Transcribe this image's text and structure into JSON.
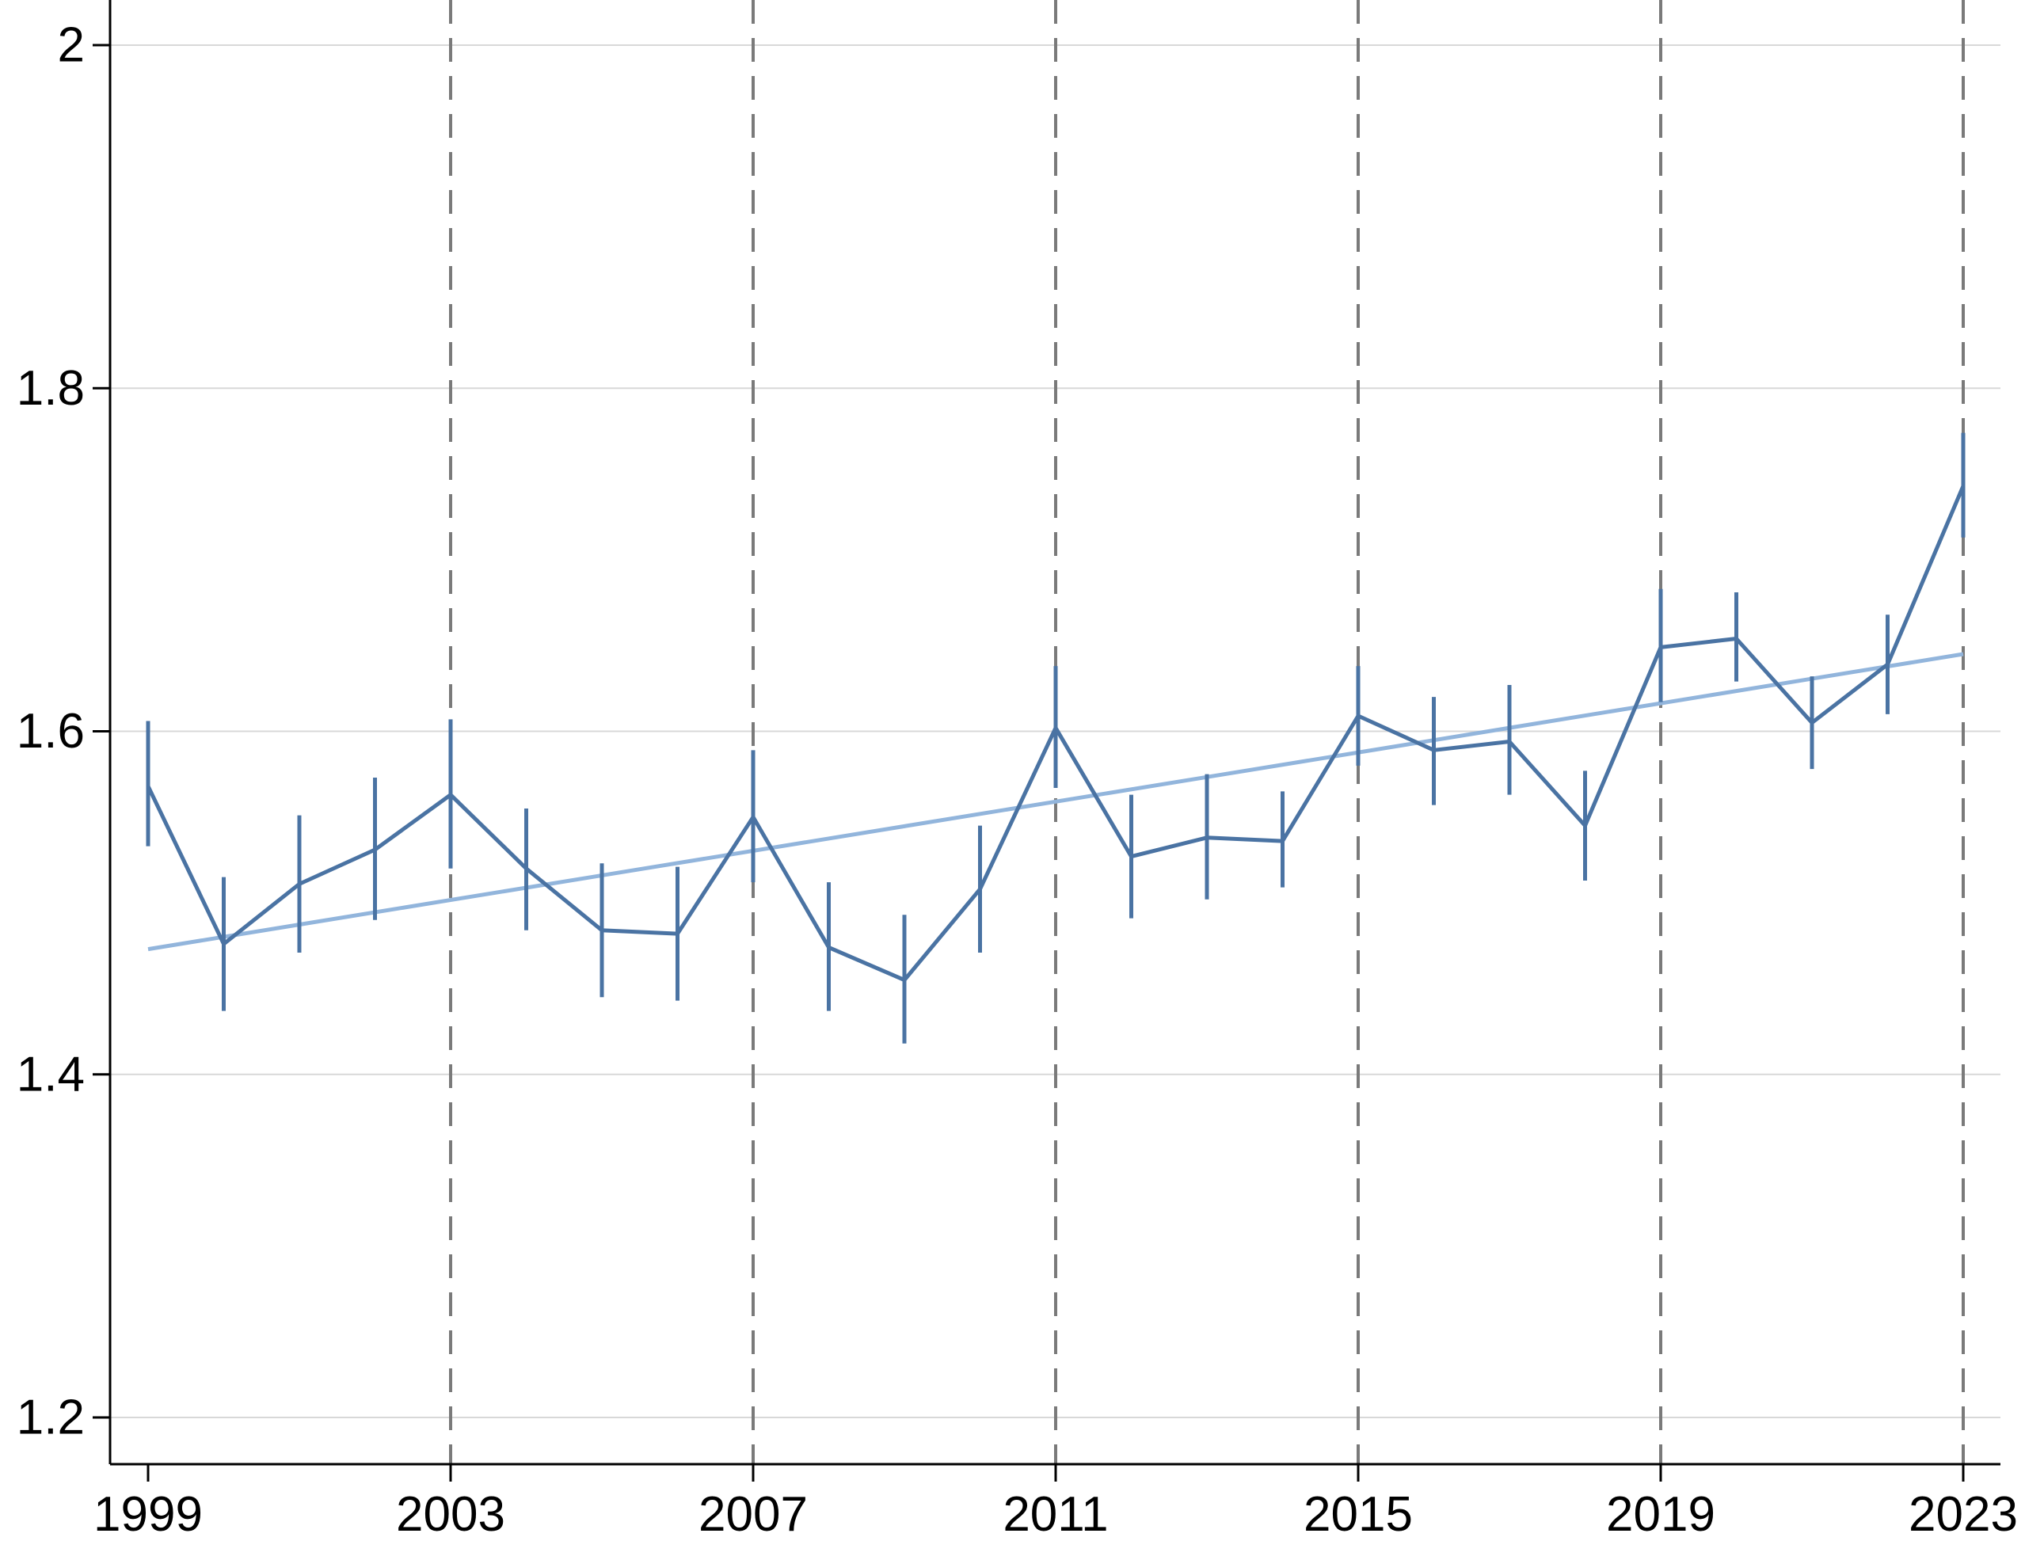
{
  "chart_data": {
    "type": "line",
    "title": "",
    "xlabel": "",
    "ylabel": "",
    "xlim": [
      1998.5,
      2023.5
    ],
    "ylim": [
      1.18,
      2.02
    ],
    "x_ticks": [
      1999,
      2003,
      2007,
      2011,
      2015,
      2019,
      2023
    ],
    "y_ticks": [
      1.2,
      1.4,
      1.6,
      1.8,
      2.0
    ],
    "y_tick_labels": [
      "1.2",
      "1.4",
      "1.6",
      "1.8",
      "2"
    ],
    "x_tick_labels": [
      "1999",
      "2003",
      "2007",
      "2011",
      "2015",
      "2019",
      "2023"
    ],
    "vertical_reference_lines": [
      2003,
      2007,
      2011,
      2015,
      2019,
      2023
    ],
    "grid": "horizontal",
    "legend": "none",
    "series": [
      {
        "type": "line_with_error_bars",
        "color": "#4a73a3",
        "x": [
          1999,
          2000,
          2001,
          2002,
          2003,
          2004,
          2005,
          2006,
          2007,
          2008,
          2009,
          2010,
          2011,
          2012,
          2013,
          2014,
          2015,
          2016,
          2017,
          2018,
          2019,
          2020,
          2021,
          2022,
          2023
        ],
        "y": [
          1.568,
          1.476,
          1.511,
          1.531,
          1.563,
          1.52,
          1.484,
          1.482,
          1.55,
          1.474,
          1.455,
          1.508,
          1.602,
          1.527,
          1.538,
          1.536,
          1.609,
          1.589,
          1.594,
          1.545,
          1.649,
          1.654,
          1.605,
          1.639,
          1.743
        ],
        "lower": [
          1.533,
          1.437,
          1.471,
          1.49,
          1.52,
          1.484,
          1.445,
          1.443,
          1.512,
          1.437,
          1.418,
          1.471,
          1.567,
          1.491,
          1.502,
          1.509,
          1.58,
          1.557,
          1.563,
          1.513,
          1.617,
          1.629,
          1.578,
          1.61,
          1.713
        ],
        "upper": [
          1.606,
          1.515,
          1.551,
          1.573,
          1.607,
          1.555,
          1.523,
          1.521,
          1.589,
          1.512,
          1.493,
          1.545,
          1.638,
          1.563,
          1.575,
          1.565,
          1.638,
          1.62,
          1.627,
          1.577,
          1.683,
          1.681,
          1.632,
          1.668,
          1.774
        ]
      },
      {
        "type": "linear_trend",
        "color": "#92b5dc",
        "x": [
          1999,
          2023
        ],
        "y": [
          1.473,
          1.645
        ]
      }
    ]
  }
}
